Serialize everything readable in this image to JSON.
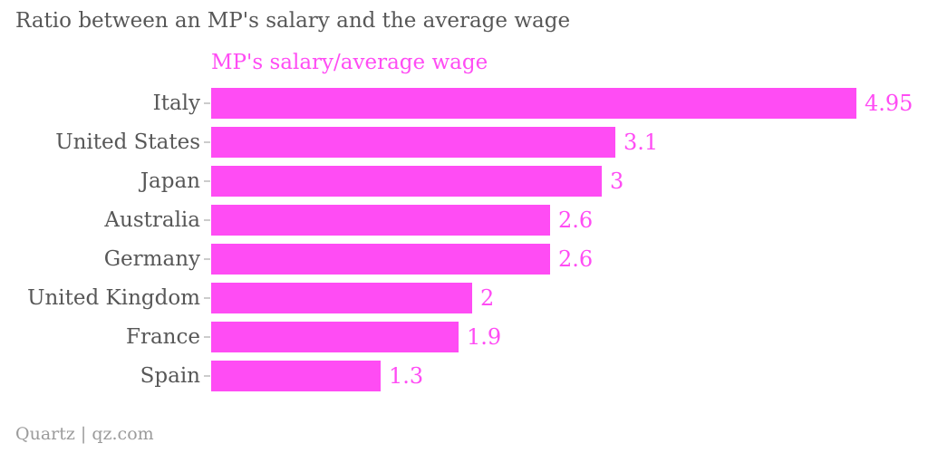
{
  "header": {
    "title": "Ratio between an MP's salary and the average wage"
  },
  "legend": {
    "label": "MP's salary/average wage"
  },
  "footer": {
    "credit": "Quartz | qz.com"
  },
  "colors": {
    "bar": "#FF4CF4",
    "title": "#575757",
    "label": "#575757",
    "tick": "#CCCCCC",
    "footer": "#9B9B9B",
    "background": "#FFFFFF"
  },
  "chart_data": {
    "type": "bar",
    "orientation": "horizontal",
    "title": "Ratio between an MP's salary and the average wage",
    "series_label": "MP's salary/average wage",
    "categories": [
      "Italy",
      "United States",
      "Japan",
      "Australia",
      "Germany",
      "United Kingdom",
      "France",
      "Spain"
    ],
    "values": [
      4.95,
      3.1,
      3,
      2.6,
      2.6,
      2,
      1.9,
      1.3
    ],
    "value_labels": [
      "4.95",
      "3.1",
      "3",
      "2.6",
      "2.6",
      "2",
      "1.9",
      "1.3"
    ],
    "xlabel": "",
    "ylabel": "",
    "xlim": [
      0,
      4.95
    ],
    "grid": false,
    "legend_position": "top-left-of-plot",
    "value_labels_position": "end-of-bar",
    "source_credit": "Quartz | qz.com"
  }
}
